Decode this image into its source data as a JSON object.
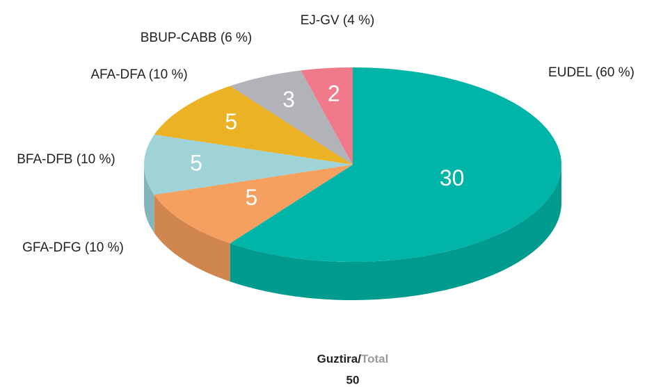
{
  "chart_data": {
    "type": "pie3d",
    "categories": [
      "EUDEL (60 %)",
      "GFA-DFG (10 %)",
      "BFA-DFB (10 %)",
      "AFA-DFA (10 %)",
      "BBUP-CABB (6 %)",
      "EJ-GV (4 %)"
    ],
    "values": [
      30,
      5,
      5,
      5,
      3,
      2
    ],
    "colors": [
      "#00b5a8",
      "#f5a05f",
      "#9fd3d8",
      "#ebb226",
      "#b1b3b9",
      "#f07a89"
    ],
    "side_colors": [
      "#009b8f",
      "#cf874f",
      "#85b5ba",
      "#c9981f",
      "#9597a0",
      "#cd6675"
    ],
    "total_label": "Guztira/",
    "total_label_en": "Total",
    "total": 50
  }
}
